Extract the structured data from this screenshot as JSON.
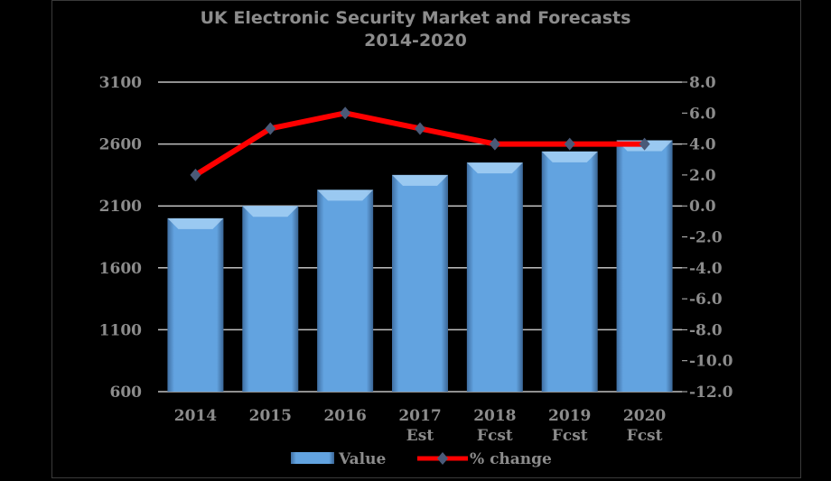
{
  "chart_data": {
    "type": "bar+line",
    "title": "UK Electronic Security Market and Forecasts",
    "subtitle": "2014-2020",
    "categories": [
      [
        "2014"
      ],
      [
        "2015"
      ],
      [
        "2016"
      ],
      [
        "2017",
        "Est"
      ],
      [
        "2018",
        "Fcst"
      ],
      [
        "2019",
        "Fcst"
      ],
      [
        "2020",
        "Fcst"
      ]
    ],
    "series": [
      {
        "name": "Value",
        "type": "bar",
        "axis": "left",
        "color": "#5b9bd5",
        "values": [
          2000,
          2100,
          2230,
          2350,
          2450,
          2540,
          2630
        ]
      },
      {
        "name": "% change",
        "type": "line",
        "axis": "right",
        "color": "#ff0000",
        "marker_color": "#4a5a78",
        "values": [
          2.0,
          5.0,
          6.0,
          5.0,
          4.0,
          4.0,
          4.0
        ]
      }
    ],
    "y_left": {
      "min": 600,
      "max": 3100,
      "ticks": [
        "600",
        "1100",
        "1600",
        "2100",
        "2600",
        "3100"
      ]
    },
    "y_right": {
      "min": -12,
      "max": 8,
      "ticks": [
        "-12.0",
        "-10.0",
        "-8.0",
        "-6.0",
        "-4.0",
        "-2.0",
        "0.0",
        "2.0",
        "4.0",
        "6.0",
        "8.0"
      ]
    },
    "grid": true,
    "legend": "bottom"
  }
}
